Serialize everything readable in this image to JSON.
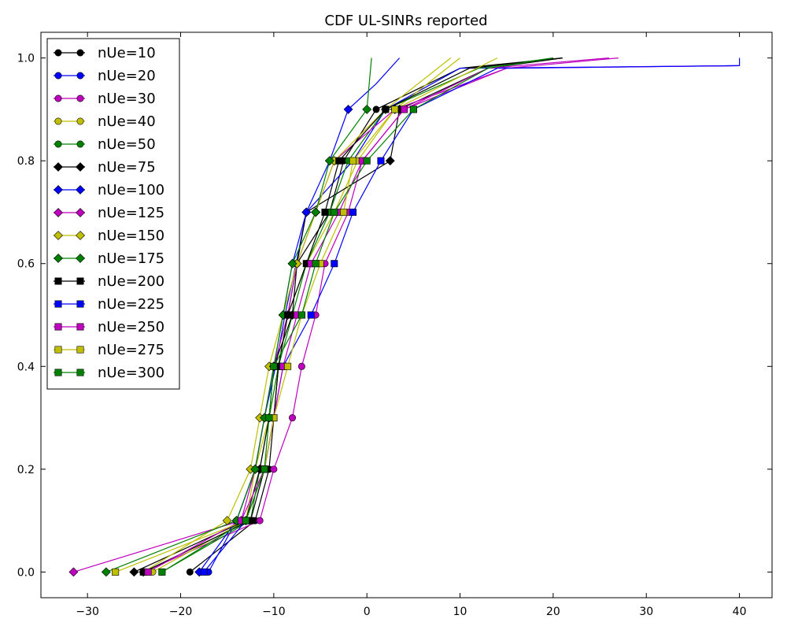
{
  "chart_data": {
    "type": "line",
    "title": "CDF UL-SINRs reported",
    "xlabel": "",
    "ylabel": "",
    "xlim": [
      -35,
      43.5
    ],
    "ylim": [
      -0.05,
      1.05
    ],
    "xticks": [
      -30,
      -20,
      -10,
      0,
      10,
      20,
      30,
      40
    ],
    "yticks": [
      0.0,
      0.2,
      0.4,
      0.6,
      0.8,
      1.0
    ],
    "xtick_labels": [
      "−30",
      "−20",
      "−10",
      "0",
      "10",
      "20",
      "30",
      "40"
    ],
    "ytick_labels": [
      "0.0",
      "0.2",
      "0.4",
      "0.6",
      "0.8",
      "1.0"
    ],
    "grid": false,
    "legend_position": "top-left",
    "marker_levels": [
      0,
      0.1,
      0.2,
      0.3,
      0.4,
      0.5,
      0.6,
      0.7,
      0.8,
      0.9
    ],
    "series": [
      {
        "name": "nUe=10",
        "color": "#000000",
        "marker": "circle",
        "points": [
          [
            -19,
            0
          ],
          [
            -12,
            0.1
          ],
          [
            -10.5,
            0.2
          ],
          [
            -10,
            0.3
          ],
          [
            -9.5,
            0.4
          ],
          [
            -8.5,
            0.5
          ],
          [
            -7.5,
            0.6
          ],
          [
            -4,
            0.7
          ],
          [
            -2.5,
            0.8
          ],
          [
            1,
            0.9
          ],
          [
            10,
            0.98
          ],
          [
            21,
            1.0
          ]
        ]
      },
      {
        "name": "nUe=20",
        "color": "#0000ff",
        "marker": "circle",
        "points": [
          [
            -17,
            0
          ],
          [
            -14,
            0.1
          ],
          [
            -12,
            0.2
          ],
          [
            -11,
            0.3
          ],
          [
            -9.8,
            0.4
          ],
          [
            -8.8,
            0.5
          ],
          [
            -7.6,
            0.6
          ],
          [
            -6.5,
            0.7
          ],
          [
            -1.5,
            0.8
          ],
          [
            2,
            0.9
          ],
          [
            10,
            0.98
          ],
          [
            40,
            0.985
          ],
          [
            40,
            1.0
          ]
        ]
      },
      {
        "name": "nUe=30",
        "color": "#bf00bf",
        "marker": "circle",
        "points": [
          [
            -24,
            0
          ],
          [
            -11.5,
            0.1
          ],
          [
            -10,
            0.2
          ],
          [
            -8,
            0.3
          ],
          [
            -7,
            0.4
          ],
          [
            -5.5,
            0.5
          ],
          [
            -4.5,
            0.6
          ],
          [
            -2,
            0.7
          ],
          [
            -0.5,
            0.8
          ],
          [
            4,
            0.9
          ],
          [
            15,
            0.98
          ],
          [
            40,
            0.985
          ]
        ]
      },
      {
        "name": "nUe=40",
        "color": "#bfbf00",
        "marker": "circle",
        "points": [
          [
            -23,
            0
          ],
          [
            -13,
            0.1
          ],
          [
            -12,
            0.2
          ],
          [
            -10.5,
            0.3
          ],
          [
            -9.5,
            0.4
          ],
          [
            -8.5,
            0.5
          ],
          [
            -6.5,
            0.6
          ],
          [
            -3.5,
            0.7
          ],
          [
            -1,
            0.8
          ],
          [
            3,
            0.9
          ],
          [
            10,
            1.0
          ]
        ]
      },
      {
        "name": "nUe=50",
        "color": "#008000",
        "marker": "circle",
        "points": [
          [
            -22,
            0
          ],
          [
            -12.5,
            0.1
          ],
          [
            -11.5,
            0.2
          ],
          [
            -10.5,
            0.3
          ],
          [
            -9.5,
            0.4
          ],
          [
            -8,
            0.5
          ],
          [
            -6.5,
            0.6
          ],
          [
            -4,
            0.7
          ],
          [
            -2,
            0.8
          ],
          [
            2,
            0.9
          ],
          [
            12,
            0.98
          ],
          [
            20,
            1.0
          ]
        ]
      },
      {
        "name": "nUe=75",
        "color": "#000000",
        "marker": "diamond",
        "points": [
          [
            -25,
            0
          ],
          [
            -13,
            0.1
          ],
          [
            -11.5,
            0.2
          ],
          [
            -10.5,
            0.3
          ],
          [
            -10,
            0.4
          ],
          [
            -8,
            0.5
          ],
          [
            -7.5,
            0.6
          ],
          [
            -6.5,
            0.7
          ],
          [
            2.5,
            0.8
          ],
          [
            3.5,
            0.9
          ],
          [
            13,
            0.98
          ],
          [
            21,
            1.0
          ]
        ]
      },
      {
        "name": "nUe=100",
        "color": "#0000ff",
        "marker": "diamond",
        "points": [
          [
            -18,
            0
          ],
          [
            -14,
            0.1
          ],
          [
            -12,
            0.2
          ],
          [
            -11,
            0.3
          ],
          [
            -10,
            0.4
          ],
          [
            -9,
            0.5
          ],
          [
            -8,
            0.6
          ],
          [
            -6.5,
            0.7
          ],
          [
            -4,
            0.8
          ],
          [
            -2,
            0.9
          ],
          [
            1,
            0.95
          ],
          [
            3.5,
            1.0
          ]
        ]
      },
      {
        "name": "nUe=125",
        "color": "#bf00bf",
        "marker": "diamond",
        "points": [
          [
            -31.5,
            0
          ],
          [
            -13.5,
            0.1
          ],
          [
            -12,
            0.2
          ],
          [
            -11,
            0.3
          ],
          [
            -10,
            0.4
          ],
          [
            -8.5,
            0.5
          ],
          [
            -7.5,
            0.6
          ],
          [
            -5.5,
            0.7
          ],
          [
            -3.5,
            0.8
          ],
          [
            3,
            0.9
          ],
          [
            15,
            0.98
          ],
          [
            27,
            1.0
          ]
        ]
      },
      {
        "name": "nUe=150",
        "color": "#bfbf00",
        "marker": "diamond",
        "points": [
          [
            -24,
            0
          ],
          [
            -15,
            0.1
          ],
          [
            -12.5,
            0.2
          ],
          [
            -11.5,
            0.3
          ],
          [
            -10.5,
            0.4
          ],
          [
            -9,
            0.5
          ],
          [
            -7.5,
            0.6
          ],
          [
            -5.5,
            0.7
          ],
          [
            -3.5,
            0.8
          ],
          [
            2,
            0.9
          ],
          [
            9,
            1.0
          ]
        ]
      },
      {
        "name": "nUe=175",
        "color": "#008000",
        "marker": "diamond",
        "points": [
          [
            -28,
            0
          ],
          [
            -14,
            0.1
          ],
          [
            -12,
            0.2
          ],
          [
            -11,
            0.3
          ],
          [
            -10,
            0.4
          ],
          [
            -9,
            0.5
          ],
          [
            -8,
            0.6
          ],
          [
            -5.5,
            0.7
          ],
          [
            -4,
            0.8
          ],
          [
            0,
            0.9
          ],
          [
            0.5,
            1.0
          ]
        ]
      },
      {
        "name": "nUe=200",
        "color": "#000000",
        "marker": "square",
        "points": [
          [
            -24,
            0
          ],
          [
            -12.5,
            0.1
          ],
          [
            -11,
            0.2
          ],
          [
            -10,
            0.3
          ],
          [
            -9.5,
            0.4
          ],
          [
            -8.5,
            0.5
          ],
          [
            -6.5,
            0.6
          ],
          [
            -4.5,
            0.7
          ],
          [
            -3,
            0.8
          ],
          [
            2,
            0.9
          ],
          [
            11,
            0.98
          ],
          [
            21,
            1.0
          ]
        ]
      },
      {
        "name": "nUe=225",
        "color": "#0000ff",
        "marker": "square",
        "points": [
          [
            -17.5,
            0
          ],
          [
            -13,
            0.1
          ],
          [
            -11,
            0.2
          ],
          [
            -10,
            0.3
          ],
          [
            -9,
            0.4
          ],
          [
            -6,
            0.5
          ],
          [
            -3.5,
            0.6
          ],
          [
            -1.5,
            0.7
          ],
          [
            1.5,
            0.8
          ],
          [
            5,
            0.9
          ],
          [
            14,
            0.98
          ],
          [
            40,
            0.985
          ]
        ]
      },
      {
        "name": "nUe=250",
        "color": "#bf00bf",
        "marker": "square",
        "points": [
          [
            -23.5,
            0
          ],
          [
            -13.5,
            0.1
          ],
          [
            -11,
            0.2
          ],
          [
            -10,
            0.3
          ],
          [
            -9,
            0.4
          ],
          [
            -7.5,
            0.5
          ],
          [
            -6,
            0.6
          ],
          [
            -3,
            0.7
          ],
          [
            -0.5,
            0.8
          ],
          [
            4,
            0.9
          ],
          [
            13,
            0.98
          ],
          [
            26,
            1.0
          ]
        ]
      },
      {
        "name": "nUe=275",
        "color": "#bfbf00",
        "marker": "square",
        "points": [
          [
            -27,
            0
          ],
          [
            -13,
            0.1
          ],
          [
            -11,
            0.2
          ],
          [
            -10,
            0.3
          ],
          [
            -8.5,
            0.4
          ],
          [
            -7,
            0.5
          ],
          [
            -5,
            0.6
          ],
          [
            -2.5,
            0.7
          ],
          [
            -1.5,
            0.8
          ],
          [
            3,
            0.9
          ],
          [
            14,
            1.0
          ]
        ]
      },
      {
        "name": "nUe=300",
        "color": "#008000",
        "marker": "square",
        "points": [
          [
            -22,
            0
          ],
          [
            -13,
            0.1
          ],
          [
            -11,
            0.2
          ],
          [
            -10.5,
            0.3
          ],
          [
            -10,
            0.4
          ],
          [
            -7,
            0.5
          ],
          [
            -5.5,
            0.6
          ],
          [
            -3.5,
            0.7
          ],
          [
            0,
            0.8
          ],
          [
            5,
            0.9
          ],
          [
            13,
            0.98
          ],
          [
            20,
            1.0
          ]
        ]
      }
    ]
  }
}
